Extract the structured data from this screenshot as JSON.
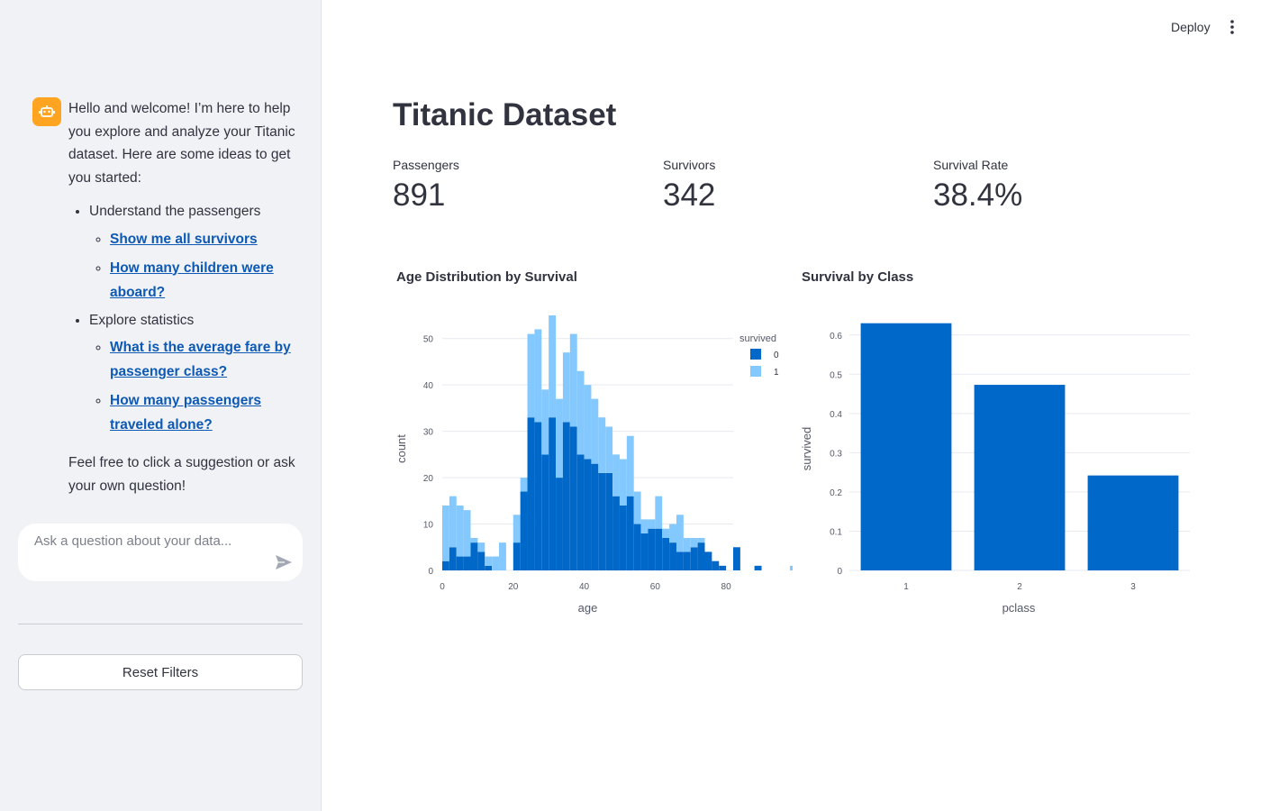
{
  "header": {
    "deploy_label": "Deploy",
    "menu_icon": "more-vertical-icon"
  },
  "sidebar": {
    "avatar_icon": "robot-icon",
    "avatar_color": "#ffa421",
    "message": {
      "intro": "Hello and welcome! I’m here to help you explore and analyze your Titanic dataset. Here are some ideas to get you started:",
      "sections": [
        {
          "label": "Understand the passengers",
          "links": [
            "Show me all survivors",
            "How many children were aboard?"
          ]
        },
        {
          "label": "Explore statistics",
          "links": [
            "What is the average fare by passenger class?",
            "How many passengers traveled alone?"
          ]
        }
      ],
      "outro": "Feel free to click a suggestion or ask your own question!"
    },
    "chat_input": {
      "placeholder": "Ask a question about your data..."
    },
    "reset_label": "Reset Filters"
  },
  "main": {
    "title": "Titanic Dataset",
    "metrics": [
      {
        "label": "Passengers",
        "value": "891"
      },
      {
        "label": "Survivors",
        "value": "342"
      },
      {
        "label": "Survival Rate",
        "value": "38.4%"
      }
    ],
    "charts": {
      "age_title": "Age Distribution by Survival",
      "class_title": "Survival by Class"
    }
  },
  "colors": {
    "dark_blue": "#0068c9",
    "light_blue": "#83c9ff",
    "link": "#0d59b4",
    "sidebar_bg": "#f0f2f6"
  },
  "chart_data": [
    {
      "type": "bar",
      "title": "Age Distribution by Survival",
      "xlabel": "age",
      "ylabel": "count",
      "stacked": true,
      "bin_width": 2,
      "bin_start": 0,
      "xlim": [
        0,
        82
      ],
      "ylim": [
        0,
        55
      ],
      "xticks": [
        0,
        20,
        40,
        60,
        80
      ],
      "yticks": [
        0,
        10,
        20,
        30,
        40,
        50
      ],
      "legend": {
        "title": "survived",
        "position": "top-right"
      },
      "series": [
        {
          "name": "0",
          "values": [
            2,
            5,
            3,
            3,
            6,
            4,
            1,
            0,
            0,
            0,
            6,
            17,
            33,
            32,
            25,
            33,
            20,
            32,
            31,
            25,
            24,
            23,
            21,
            21,
            16,
            14,
            16,
            10,
            8,
            9,
            9,
            7,
            6,
            4,
            4,
            5,
            6,
            4,
            2,
            1,
            0,
            5,
            0,
            0,
            1,
            0,
            0,
            0,
            0,
            0
          ]
        },
        {
          "name": "1",
          "values": [
            12,
            11,
            11,
            10,
            1,
            2,
            2,
            3,
            6,
            0,
            6,
            3,
            18,
            20,
            14,
            22,
            17,
            15,
            20,
            18,
            16,
            14,
            12,
            10,
            9,
            10,
            13,
            7,
            3,
            2,
            7,
            2,
            4,
            8,
            3,
            2,
            1,
            0,
            0,
            0,
            0,
            0,
            0,
            0,
            0,
            0,
            0,
            0,
            0,
            1
          ]
        }
      ]
    },
    {
      "type": "bar",
      "title": "Survival by Class",
      "xlabel": "pclass",
      "ylabel": "survived",
      "categories": [
        "1",
        "2",
        "3"
      ],
      "values": [
        0.63,
        0.473,
        0.242
      ],
      "ylim": [
        0,
        0.65
      ],
      "yticks": [
        0,
        0.1,
        0.2,
        0.3,
        0.4,
        0.5,
        0.6
      ]
    }
  ]
}
